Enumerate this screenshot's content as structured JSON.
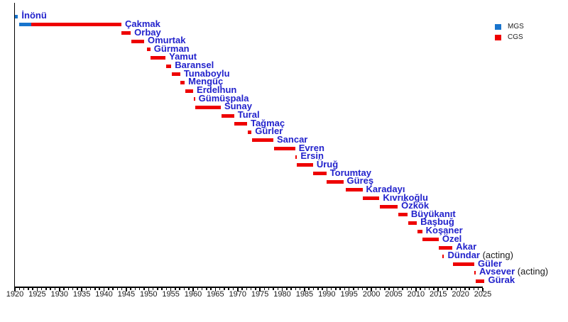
{
  "colors": {
    "name_label": "#2222CC",
    "suffix_label": "#1a1a1a",
    "axis": "#000000"
  },
  "chart_data": {
    "type": "bar",
    "subtype": "timeline-gantt",
    "title": "",
    "xlabel": "",
    "ylabel": "",
    "grid": false,
    "legend_position": "top-right",
    "x_axis": {
      "min": 1920,
      "max": 2025,
      "major_step": 5,
      "minor_step": 1,
      "ticks": [
        1920,
        1925,
        1930,
        1935,
        1940,
        1945,
        1950,
        1955,
        1960,
        1965,
        1970,
        1975,
        1980,
        1985,
        1990,
        1995,
        2000,
        2005,
        2010,
        2015,
        2020,
        2025
      ]
    },
    "legend": [
      {
        "label": "MGS",
        "color": "#1874CD"
      },
      {
        "label": "CGS",
        "color": "#EE0000"
      }
    ],
    "people": [
      {
        "name": "İnönü",
        "suffix": "",
        "segments": [
          {
            "role": "MGS",
            "start": 1920.0,
            "end": 1920.7
          }
        ]
      },
      {
        "name": "Çakmak",
        "suffix": "",
        "segments": [
          {
            "role": "MGS",
            "start": 1920.9,
            "end": 1923.7
          },
          {
            "role": "CGS",
            "start": 1923.7,
            "end": 1943.9
          }
        ]
      },
      {
        "name": "Orbay",
        "suffix": "",
        "segments": [
          {
            "role": "CGS",
            "start": 1943.9,
            "end": 1946.0
          }
        ]
      },
      {
        "name": "Omurtak",
        "suffix": "",
        "segments": [
          {
            "role": "CGS",
            "start": 1946.1,
            "end": 1949.0
          }
        ]
      },
      {
        "name": "Gürman",
        "suffix": "",
        "segments": [
          {
            "role": "CGS",
            "start": 1949.6,
            "end": 1950.4
          }
        ]
      },
      {
        "name": "Yamut",
        "suffix": "",
        "segments": [
          {
            "role": "CGS",
            "start": 1950.5,
            "end": 1953.8
          }
        ]
      },
      {
        "name": "Baransel",
        "suffix": "",
        "segments": [
          {
            "role": "CGS",
            "start": 1953.9,
            "end": 1955.1
          }
        ]
      },
      {
        "name": "Tunaboylu",
        "suffix": "",
        "segments": [
          {
            "role": "CGS",
            "start": 1955.2,
            "end": 1957.1
          }
        ]
      },
      {
        "name": "Mengüç",
        "suffix": "",
        "segments": [
          {
            "role": "CGS",
            "start": 1957.2,
            "end": 1958.1
          }
        ]
      },
      {
        "name": "Erdelhun",
        "suffix": "",
        "segments": [
          {
            "role": "CGS",
            "start": 1958.2,
            "end": 1960.0
          }
        ]
      },
      {
        "name": "Gümüşpala",
        "suffix": "",
        "segments": [
          {
            "role": "CGS",
            "start": 1960.1,
            "end": 1960.3
          }
        ]
      },
      {
        "name": "Sunay",
        "suffix": "",
        "segments": [
          {
            "role": "CGS",
            "start": 1960.4,
            "end": 1966.2
          }
        ]
      },
      {
        "name": "Tural",
        "suffix": "",
        "segments": [
          {
            "role": "CGS",
            "start": 1966.3,
            "end": 1969.2
          }
        ]
      },
      {
        "name": "Tağmaç",
        "suffix": "",
        "segments": [
          {
            "role": "CGS",
            "start": 1969.3,
            "end": 1972.1
          }
        ]
      },
      {
        "name": "Gürler",
        "suffix": "",
        "segments": [
          {
            "role": "CGS",
            "start": 1972.2,
            "end": 1973.1
          }
        ]
      },
      {
        "name": "Sancar",
        "suffix": "",
        "segments": [
          {
            "role": "CGS",
            "start": 1973.2,
            "end": 1978.0
          }
        ]
      },
      {
        "name": "Evren",
        "suffix": "",
        "segments": [
          {
            "role": "CGS",
            "start": 1978.1,
            "end": 1982.9
          }
        ]
      },
      {
        "name": "Ersin",
        "suffix": "",
        "segments": [
          {
            "role": "CGS",
            "start": 1983.0,
            "end": 1983.2
          }
        ]
      },
      {
        "name": "Üruğ",
        "suffix": "",
        "segments": [
          {
            "role": "CGS",
            "start": 1983.3,
            "end": 1986.9
          }
        ]
      },
      {
        "name": "Torumtay",
        "suffix": "",
        "segments": [
          {
            "role": "CGS",
            "start": 1987.0,
            "end": 1989.9
          }
        ]
      },
      {
        "name": "Güreş",
        "suffix": "",
        "segments": [
          {
            "role": "CGS",
            "start": 1990.0,
            "end": 1993.7
          }
        ]
      },
      {
        "name": "Karadayı",
        "suffix": "",
        "segments": [
          {
            "role": "CGS",
            "start": 1994.2,
            "end": 1998.0
          }
        ]
      },
      {
        "name": "Kıvrıkoğlu",
        "suffix": "",
        "segments": [
          {
            "role": "CGS",
            "start": 1998.1,
            "end": 2001.8
          }
        ]
      },
      {
        "name": "Özkök",
        "suffix": "",
        "segments": [
          {
            "role": "CGS",
            "start": 2001.9,
            "end": 2005.9
          }
        ]
      },
      {
        "name": "Büyükanıt",
        "suffix": "",
        "segments": [
          {
            "role": "CGS",
            "start": 2006.0,
            "end": 2008.1
          }
        ]
      },
      {
        "name": "Başbuğ",
        "suffix": "",
        "segments": [
          {
            "role": "CGS",
            "start": 2008.2,
            "end": 2010.2
          }
        ]
      },
      {
        "name": "Koşaner",
        "suffix": "",
        "segments": [
          {
            "role": "CGS",
            "start": 2010.3,
            "end": 2011.4
          }
        ]
      },
      {
        "name": "Özel",
        "suffix": "",
        "segments": [
          {
            "role": "CGS",
            "start": 2011.5,
            "end": 2015.1
          }
        ]
      },
      {
        "name": "Akar",
        "suffix": "",
        "segments": [
          {
            "role": "CGS",
            "start": 2015.2,
            "end": 2018.2
          }
        ]
      },
      {
        "name": "Dündar",
        "suffix": " (acting)",
        "segments": [
          {
            "role": "CGS",
            "start": 2016.0,
            "end": 2016.2
          }
        ]
      },
      {
        "name": "Güler",
        "suffix": "",
        "segments": [
          {
            "role": "CGS",
            "start": 2018.3,
            "end": 2023.1
          }
        ]
      },
      {
        "name": "Avsever",
        "suffix": " (acting)",
        "segments": [
          {
            "role": "CGS",
            "start": 2023.1,
            "end": 2023.3
          }
        ]
      },
      {
        "name": "Gürak",
        "suffix": "",
        "segments": [
          {
            "role": "CGS",
            "start": 2023.4,
            "end": 2025.4
          }
        ]
      }
    ]
  }
}
